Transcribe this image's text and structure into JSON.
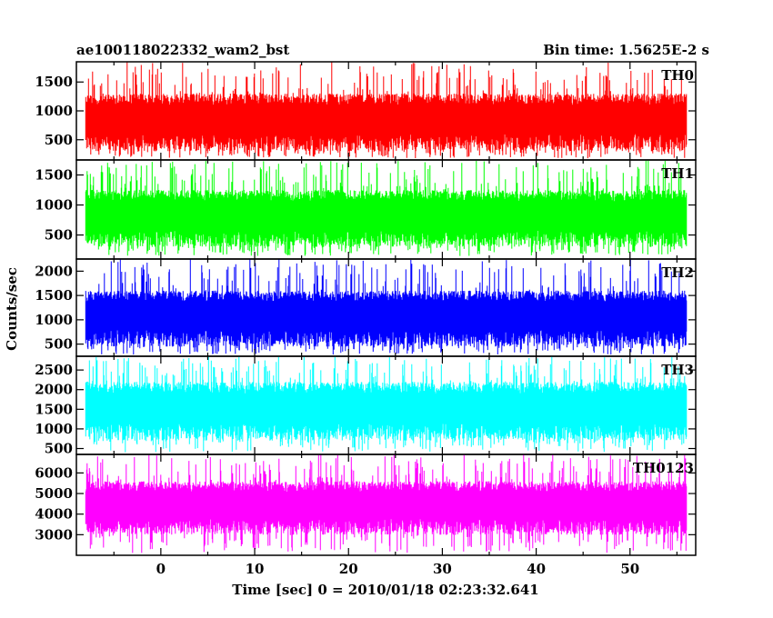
{
  "header": {
    "left_title": "ae100118022332_wam2_bst",
    "right_title": "Bin time: 1.5625E-2 s"
  },
  "chart_data": {
    "type": "line",
    "xlabel": "Time [sec] 0 = 2010/01/18 02:23:32.641",
    "ylabel": "Counts/sec",
    "xlim": [
      -9,
      57
    ],
    "x_ticks": [
      0,
      10,
      20,
      30,
      40,
      50
    ],
    "x_tick_labels": [
      "0",
      "10",
      "20",
      "30",
      "40",
      "50"
    ],
    "data_x_range": [
      -8,
      56
    ],
    "bin_time": 0.015625,
    "panels": [
      {
        "name": "TH0",
        "color": "#ff0000",
        "ylim": [
          150,
          1850
        ],
        "y_ticks": [
          500,
          1000,
          1500
        ],
        "y_tick_labels": [
          "500",
          "1000",
          "1500"
        ],
        "typical_range": [
          300,
          1300
        ],
        "min_approx": 180,
        "max_approx": 1850
      },
      {
        "name": "TH1",
        "color": "#00ff00",
        "ylim": [
          100,
          1750
        ],
        "y_ticks": [
          500,
          1000,
          1500
        ],
        "y_tick_labels": [
          "500",
          "1000",
          "1500"
        ],
        "typical_range": [
          300,
          1250
        ],
        "min_approx": 150,
        "max_approx": 1750
      },
      {
        "name": "TH2",
        "color": "#0000ff",
        "ylim": [
          250,
          2250
        ],
        "y_ticks": [
          500,
          1000,
          1500,
          2000
        ],
        "y_tick_labels": [
          "500",
          "1000",
          "1500",
          "2000"
        ],
        "typical_range": [
          450,
          1600
        ],
        "min_approx": 280,
        "max_approx": 2250
      },
      {
        "name": "TH3",
        "color": "#00ffff",
        "ylim": [
          350,
          2850
        ],
        "y_ticks": [
          500,
          1000,
          1500,
          2000,
          2500
        ],
        "y_tick_labels": [
          "500",
          "1000",
          "1500",
          "2000",
          "2500"
        ],
        "typical_range": [
          700,
          2200
        ],
        "min_approx": 400,
        "max_approx": 2850
      },
      {
        "name": "TH0123",
        "color": "#ff00ff",
        "ylim": [
          2000,
          6900
        ],
        "y_ticks": [
          3000,
          4000,
          5000,
          6000
        ],
        "y_tick_labels": [
          "3000",
          "4000",
          "5000",
          "6000"
        ],
        "typical_range": [
          3000,
          5600
        ],
        "min_approx": 2100,
        "max_approx": 6900
      }
    ]
  }
}
